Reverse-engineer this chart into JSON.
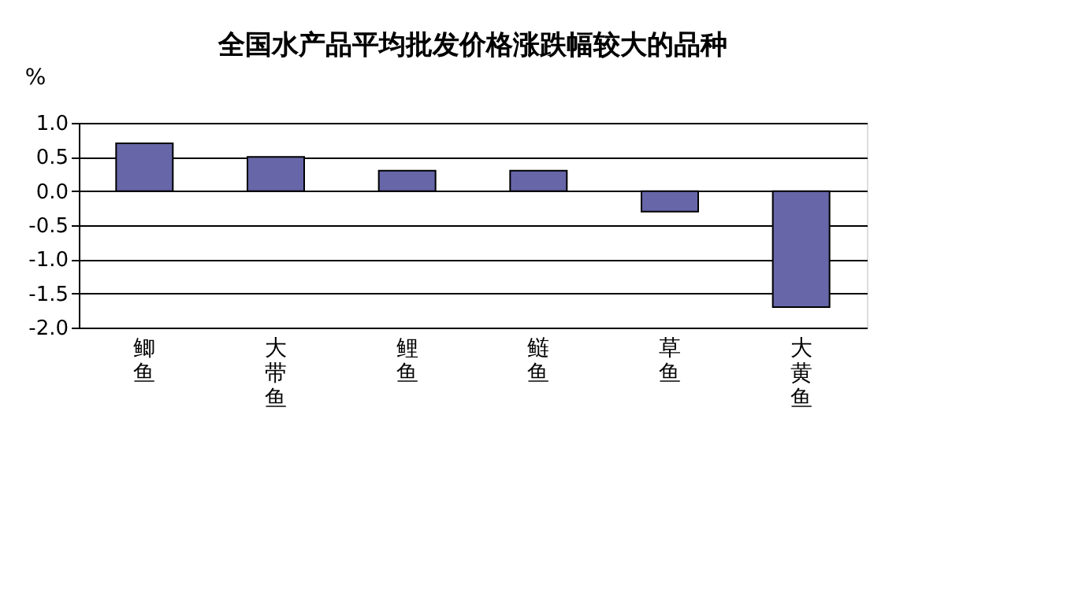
{
  "chart_data": {
    "type": "bar",
    "title": "全国水产品平均批发价格涨跌幅较大的品种",
    "ylabel": "%",
    "categories": [
      "鲫鱼",
      "大带鱼",
      "鲤鱼",
      "鲢鱼",
      "草鱼",
      "大黄鱼"
    ],
    "values": [
      0.7,
      0.5,
      0.3,
      0.3,
      -0.3,
      -1.7
    ],
    "color": "#6666a8",
    "ylim": [
      -2.0,
      1.0
    ],
    "yticks": [
      {
        "value": -2.0,
        "label": "-2.0"
      },
      {
        "value": -1.5,
        "label": "-1.5"
      },
      {
        "value": -1.0,
        "label": "-1.0"
      },
      {
        "value": -0.5,
        "label": "-0.5"
      },
      {
        "value": 0.0,
        "label": "0.0"
      },
      {
        "value": 0.5,
        "label": "0.5"
      },
      {
        "value": 1.0,
        "label": "1.0"
      }
    ],
    "grid": "y"
  }
}
